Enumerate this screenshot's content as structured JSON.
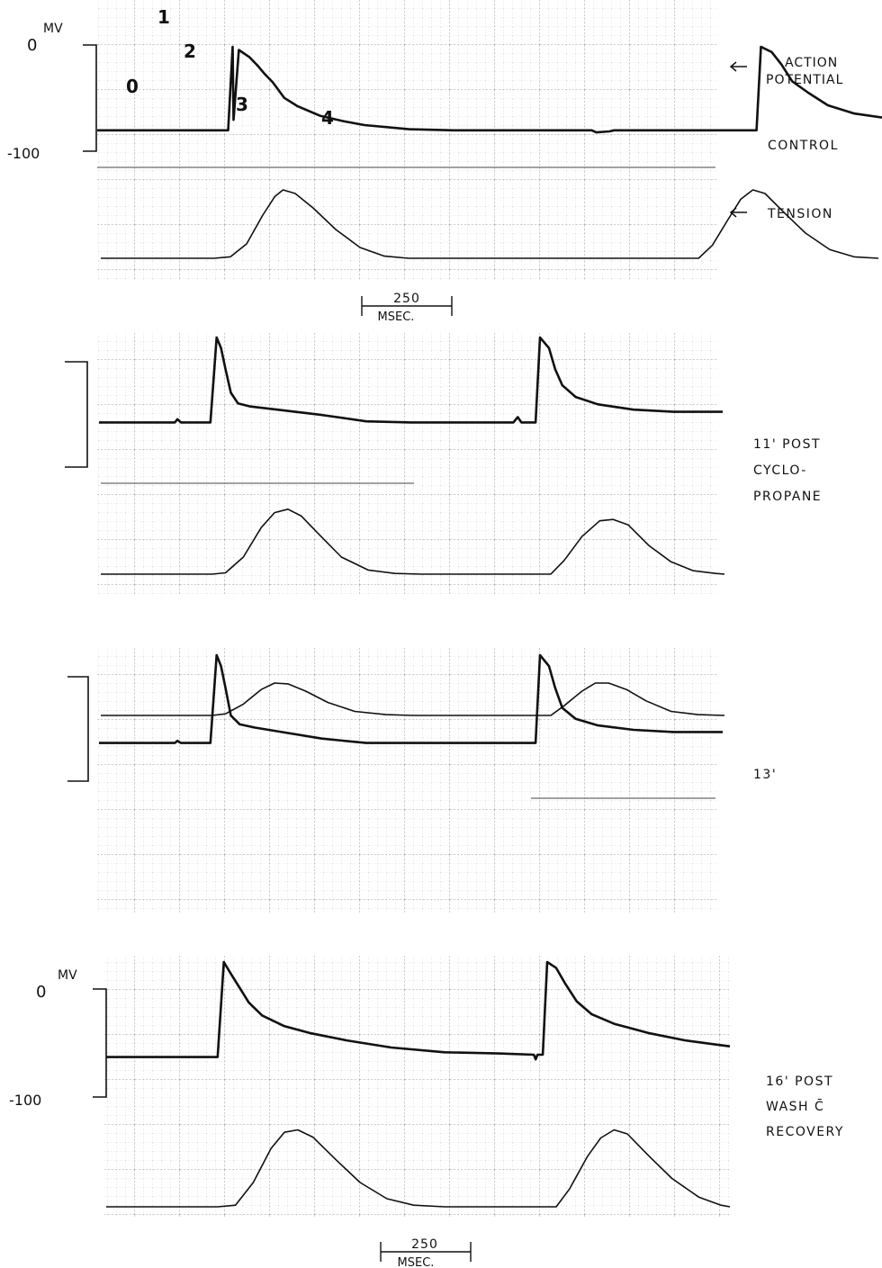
{
  "chart_data": [
    {
      "type": "line",
      "panel": "control",
      "label_lines": [
        "CONTROL"
      ],
      "series": [
        {
          "name": "ACTION POTENTIAL",
          "unit": "MV"
        },
        {
          "name": "TENSION"
        }
      ],
      "mv_scale": {
        "unit": "MV",
        "top": "0",
        "bottom": "-100"
      },
      "phase_labels": [
        "0",
        "1",
        "2",
        "3",
        "4"
      ],
      "time_scale": {
        "value": "250",
        "unit": "MSEC."
      },
      "ap_points": [
        [
          0,
          -80
        ],
        [
          130,
          -80
        ],
        [
          147,
          -80
        ],
        [
          152,
          0
        ],
        [
          153,
          -70
        ],
        [
          159,
          -3
        ],
        [
          171,
          -10
        ],
        [
          180,
          -18
        ],
        [
          188,
          -26
        ],
        [
          197,
          -34
        ],
        [
          210,
          -49
        ],
        [
          225,
          -57
        ],
        [
          250,
          -66
        ],
        [
          275,
          -71
        ],
        [
          300,
          -75
        ],
        [
          350,
          -79
        ],
        [
          400,
          -80
        ],
        [
          555,
          -80
        ],
        [
          560,
          -82
        ],
        [
          575,
          -81
        ],
        [
          580,
          -80
        ],
        [
          730,
          -80
        ],
        [
          740,
          -80
        ],
        [
          745,
          0
        ],
        [
          757,
          -5
        ],
        [
          768,
          -17
        ],
        [
          780,
          -33
        ],
        [
          798,
          -44
        ],
        [
          820,
          -56
        ],
        [
          850,
          -64
        ],
        [
          900,
          -70
        ],
        [
          940,
          -72
        ]
      ],
      "tension_points": [
        [
          0,
          0
        ],
        [
          140,
          0
        ],
        [
          160,
          2
        ],
        [
          180,
          20
        ],
        [
          200,
          60
        ],
        [
          215,
          86
        ],
        [
          225,
          95
        ],
        [
          240,
          90
        ],
        [
          262,
          70
        ],
        [
          290,
          40
        ],
        [
          320,
          15
        ],
        [
          350,
          3
        ],
        [
          380,
          0
        ],
        [
          720,
          0
        ],
        [
          738,
          0
        ],
        [
          755,
          18
        ],
        [
          775,
          55
        ],
        [
          790,
          82
        ],
        [
          805,
          95
        ],
        [
          820,
          90
        ],
        [
          845,
          62
        ],
        [
          870,
          35
        ],
        [
          900,
          12
        ],
        [
          930,
          2
        ],
        [
          960,
          0
        ]
      ]
    },
    {
      "type": "line",
      "panel": "post-cyclopropane-11",
      "label_lines": [
        "11' POST",
        "CYCLO-",
        "PROPANE"
      ],
      "ap_points": [
        [
          0,
          -80
        ],
        [
          85,
          -80
        ],
        [
          88,
          -77
        ],
        [
          92,
          -80
        ],
        [
          112,
          -80
        ],
        [
          125,
          -80
        ],
        [
          132,
          0
        ],
        [
          137,
          -10
        ],
        [
          142,
          -30
        ],
        [
          148,
          -52
        ],
        [
          156,
          -62
        ],
        [
          170,
          -65
        ],
        [
          200,
          -68
        ],
        [
          250,
          -73
        ],
        [
          300,
          -79
        ],
        [
          350,
          -80
        ],
        [
          465,
          -80
        ],
        [
          470,
          -75
        ],
        [
          474,
          -80
        ],
        [
          490,
          -80
        ],
        [
          495,
          0
        ],
        [
          505,
          -10
        ],
        [
          512,
          -30
        ],
        [
          520,
          -45
        ],
        [
          535,
          -56
        ],
        [
          560,
          -63
        ],
        [
          600,
          -68
        ],
        [
          645,
          -70
        ],
        [
          700,
          -70
        ]
      ],
      "tension_points": [
        [
          0,
          0
        ],
        [
          125,
          0
        ],
        [
          140,
          2
        ],
        [
          160,
          25
        ],
        [
          180,
          68
        ],
        [
          195,
          90
        ],
        [
          210,
          95
        ],
        [
          225,
          85
        ],
        [
          245,
          58
        ],
        [
          270,
          25
        ],
        [
          300,
          6
        ],
        [
          330,
          1
        ],
        [
          360,
          0
        ],
        [
          490,
          0
        ],
        [
          505,
          0
        ],
        [
          520,
          20
        ],
        [
          540,
          55
        ],
        [
          560,
          78
        ],
        [
          575,
          80
        ],
        [
          592,
          72
        ],
        [
          615,
          42
        ],
        [
          640,
          18
        ],
        [
          665,
          5
        ],
        [
          690,
          1
        ],
        [
          700,
          0
        ]
      ]
    },
    {
      "type": "line",
      "panel": "13-min",
      "label_lines": [
        "13'"
      ],
      "ap_points": [
        [
          0,
          -80
        ],
        [
          85,
          -80
        ],
        [
          88,
          -78
        ],
        [
          92,
          -80
        ],
        [
          125,
          -80
        ],
        [
          132,
          0
        ],
        [
          137,
          -10
        ],
        [
          142,
          -30
        ],
        [
          148,
          -55
        ],
        [
          158,
          -63
        ],
        [
          175,
          -66
        ],
        [
          205,
          -70
        ],
        [
          250,
          -76
        ],
        [
          300,
          -80
        ],
        [
          350,
          -80
        ],
        [
          490,
          -80
        ],
        [
          495,
          0
        ],
        [
          505,
          -10
        ],
        [
          512,
          -30
        ],
        [
          520,
          -48
        ],
        [
          535,
          -58
        ],
        [
          560,
          -64
        ],
        [
          600,
          -68
        ],
        [
          645,
          -70
        ],
        [
          700,
          -70
        ]
      ],
      "tension_points": [
        [
          0,
          0
        ],
        [
          125,
          0
        ],
        [
          140,
          2
        ],
        [
          160,
          14
        ],
        [
          180,
          32
        ],
        [
          195,
          40
        ],
        [
          210,
          39
        ],
        [
          230,
          30
        ],
        [
          255,
          16
        ],
        [
          285,
          5
        ],
        [
          320,
          1
        ],
        [
          350,
          0
        ],
        [
          490,
          0
        ],
        [
          505,
          0
        ],
        [
          520,
          12
        ],
        [
          540,
          30
        ],
        [
          555,
          40
        ],
        [
          570,
          40
        ],
        [
          590,
          32
        ],
        [
          612,
          18
        ],
        [
          640,
          5
        ],
        [
          670,
          1
        ],
        [
          700,
          0
        ]
      ]
    },
    {
      "type": "line",
      "panel": "post-wash-recovery-16",
      "label_lines": [
        "16' POST",
        "WASH C̄",
        "RECOVERY"
      ],
      "mv_scale": {
        "unit": "MV",
        "top": "0",
        "bottom": "-100"
      },
      "time_scale": {
        "value": "250",
        "unit": "MSEC."
      },
      "ap_points": [
        [
          0,
          -80
        ],
        [
          125,
          -80
        ],
        [
          132,
          0
        ],
        [
          140,
          -10
        ],
        [
          150,
          -22
        ],
        [
          160,
          -34
        ],
        [
          175,
          -45
        ],
        [
          200,
          -54
        ],
        [
          230,
          -60
        ],
        [
          270,
          -66
        ],
        [
          320,
          -72
        ],
        [
          380,
          -76
        ],
        [
          440,
          -77
        ],
        [
          480,
          -78
        ],
        [
          482,
          -82
        ],
        [
          484,
          -78
        ],
        [
          490,
          -78
        ],
        [
          495,
          0
        ],
        [
          505,
          -5
        ],
        [
          515,
          -18
        ],
        [
          528,
          -33
        ],
        [
          545,
          -44
        ],
        [
          570,
          -52
        ],
        [
          610,
          -60
        ],
        [
          650,
          -66
        ],
        [
          690,
          -70
        ],
        [
          700,
          -71
        ]
      ],
      "tension_points": [
        [
          0,
          0
        ],
        [
          125,
          0
        ],
        [
          145,
          2
        ],
        [
          165,
          30
        ],
        [
          185,
          72
        ],
        [
          200,
          92
        ],
        [
          215,
          95
        ],
        [
          232,
          86
        ],
        [
          258,
          58
        ],
        [
          285,
          30
        ],
        [
          315,
          10
        ],
        [
          345,
          2
        ],
        [
          380,
          0
        ],
        [
          490,
          0
        ],
        [
          505,
          0
        ],
        [
          520,
          22
        ],
        [
          540,
          62
        ],
        [
          555,
          85
        ],
        [
          570,
          95
        ],
        [
          585,
          90
        ],
        [
          608,
          64
        ],
        [
          635,
          35
        ],
        [
          665,
          12
        ],
        [
          690,
          2
        ],
        [
          700,
          0
        ]
      ]
    }
  ]
}
